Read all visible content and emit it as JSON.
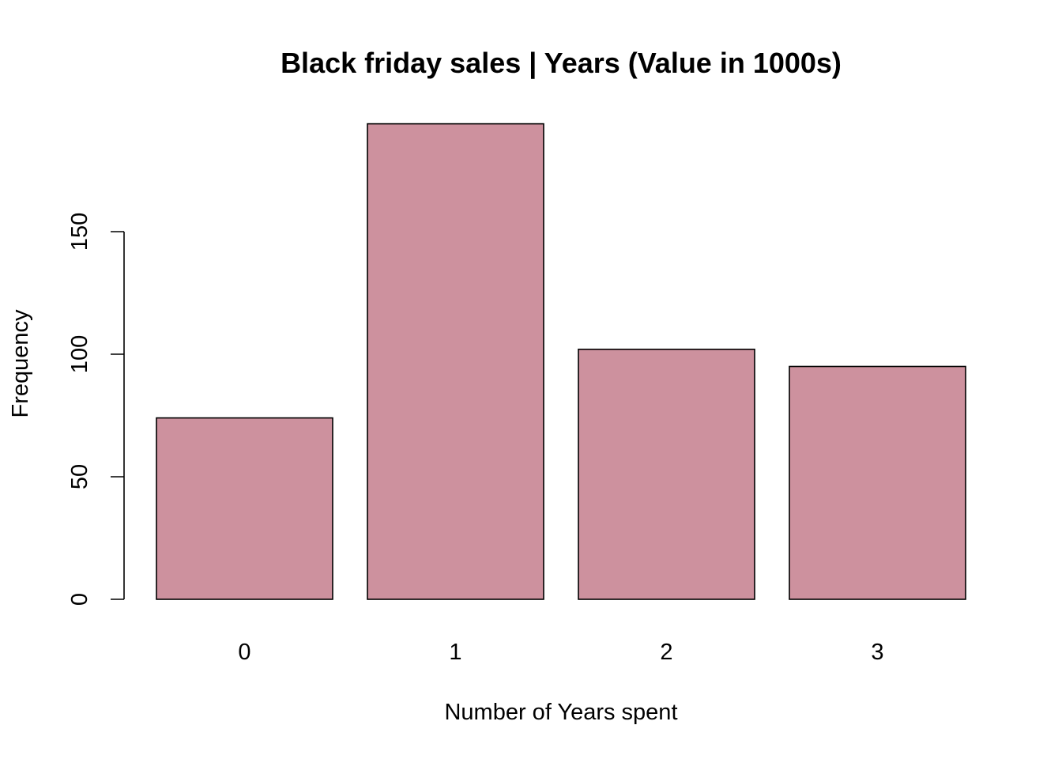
{
  "chart_data": {
    "type": "bar",
    "title": "Black friday sales | Years (Value in 1000s)",
    "xlabel": "Number of Years spent",
    "ylabel": "Frequency",
    "categories": [
      "0",
      "1",
      "2",
      "3"
    ],
    "values": [
      74,
      194,
      102,
      95
    ],
    "yticks": [
      0,
      50,
      100,
      150
    ],
    "ylim": [
      0,
      194
    ],
    "bar_color": "#CD919E",
    "grid": false,
    "legend": "none"
  }
}
